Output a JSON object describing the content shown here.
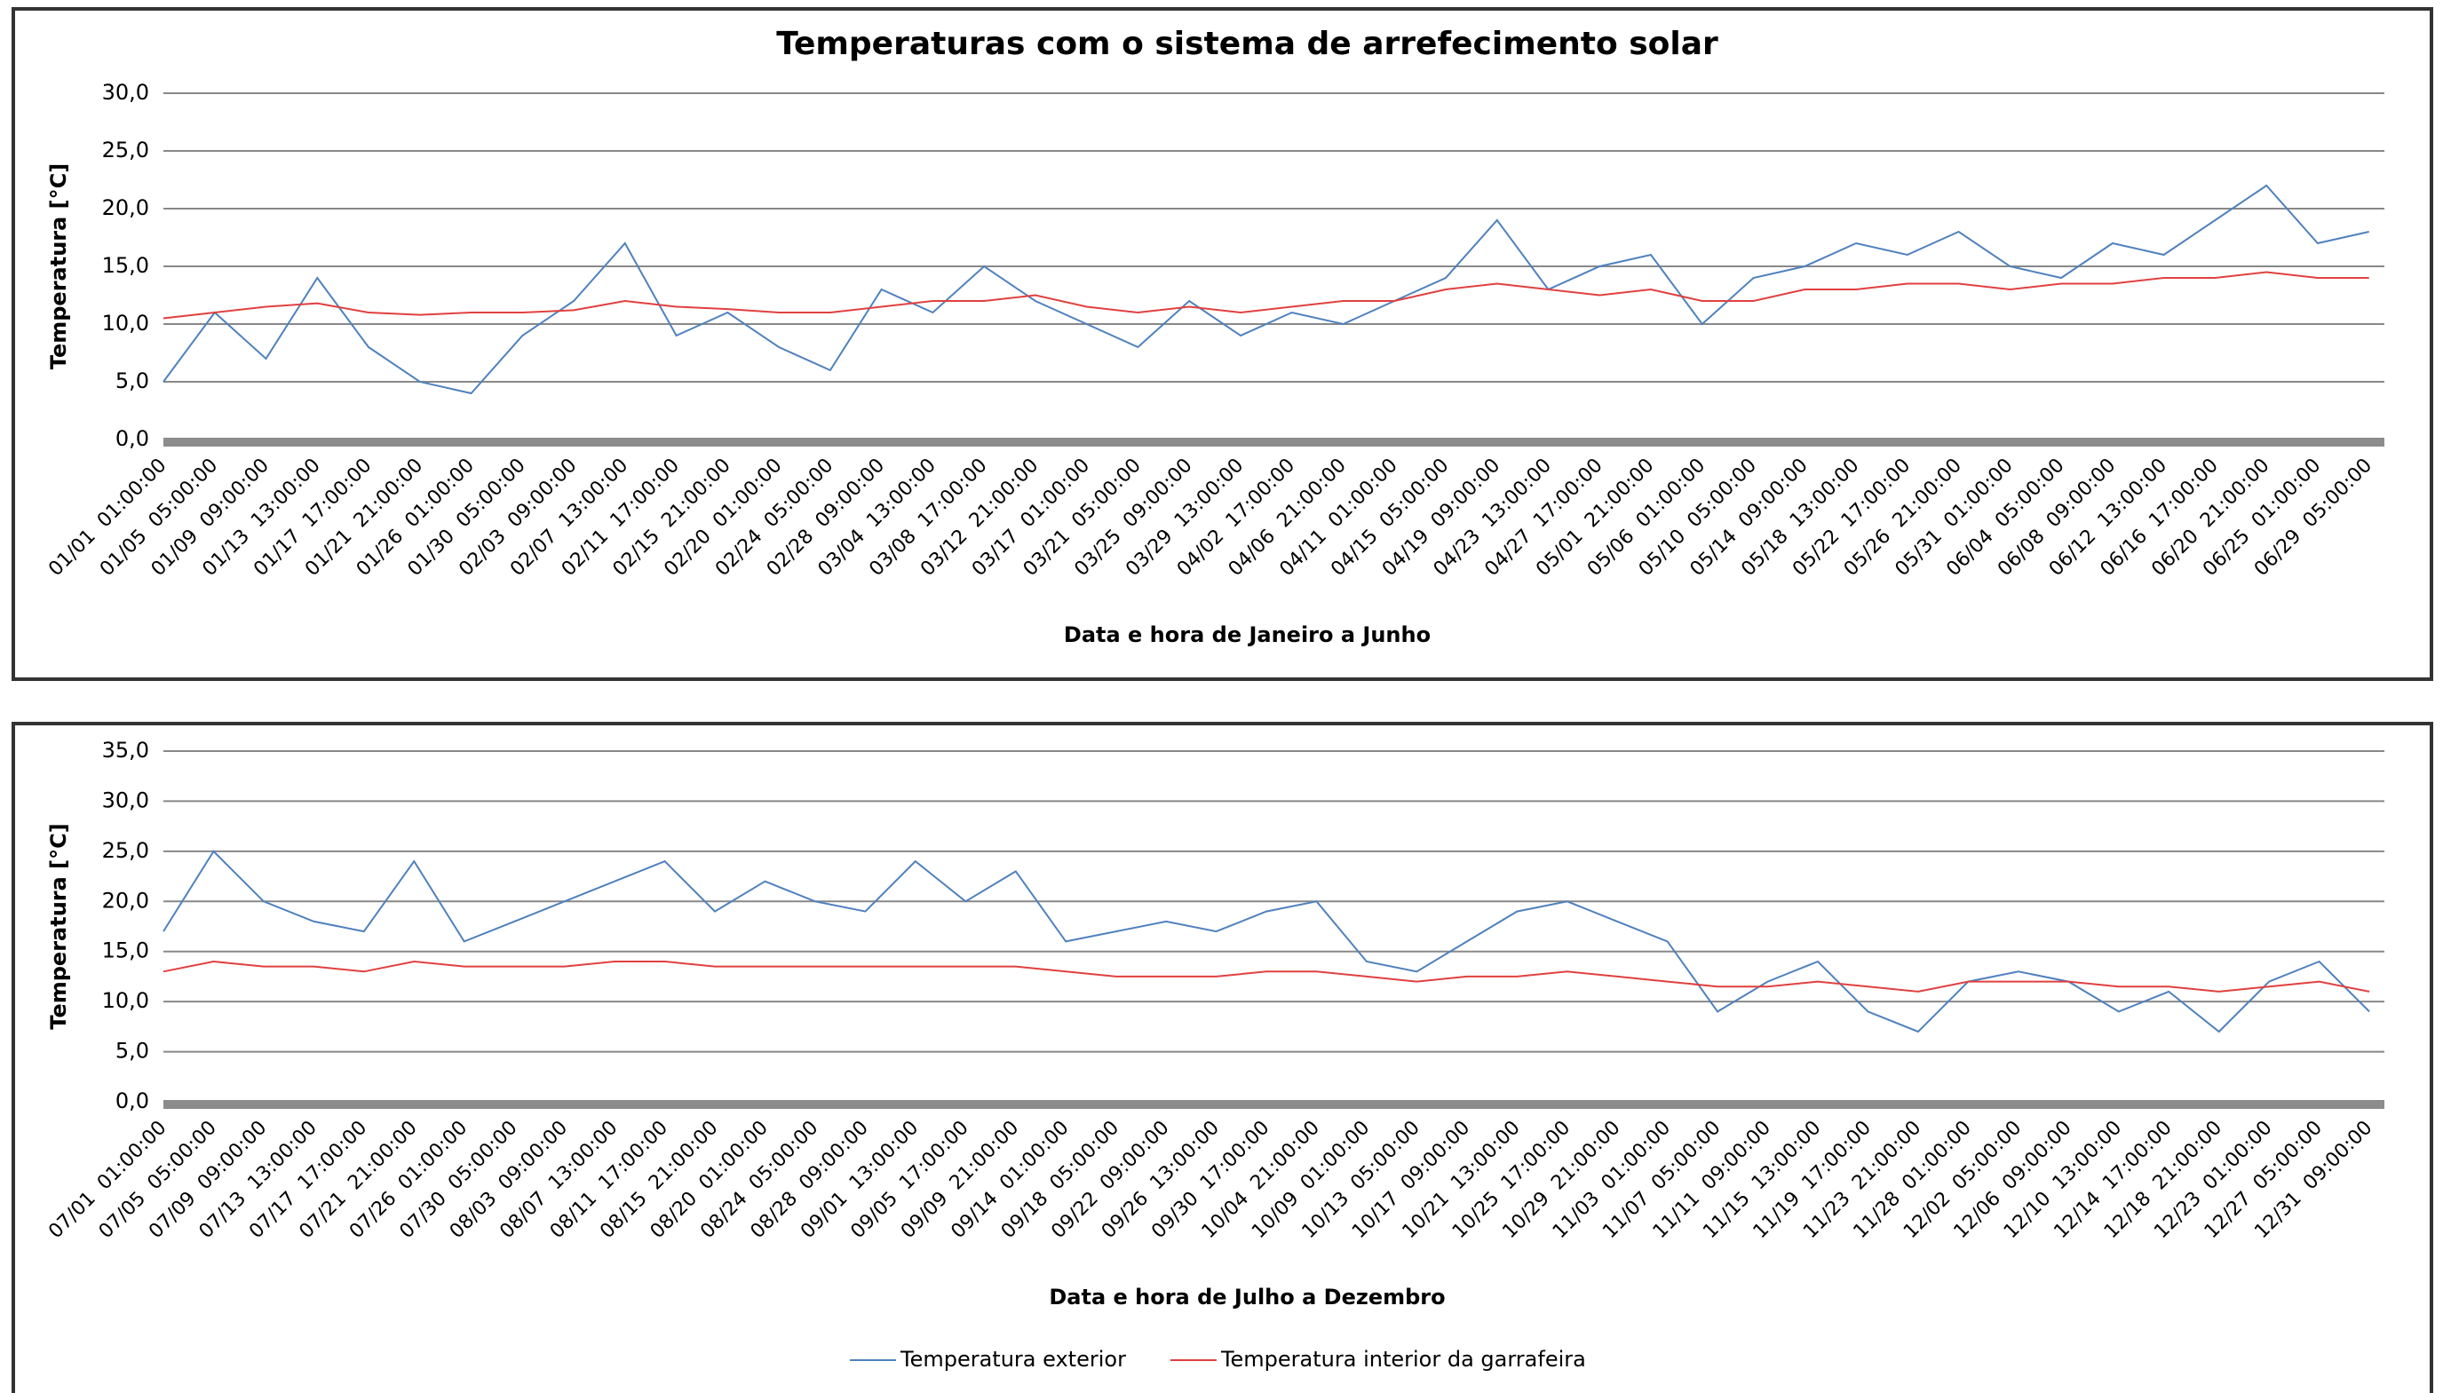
{
  "chart_data": [
    {
      "type": "line",
      "title": "Temperaturas com o sistema de arrefecimento solar",
      "x_label": "Data e hora de Janeiro a Junho",
      "y_label": "Temperatura [°C]",
      "categories": [
        "01/01  01:00:00",
        "01/05  05:00:00",
        "01/09  09:00:00",
        "01/13  13:00:00",
        "01/17  17:00:00",
        "01/21  21:00:00",
        "01/26  01:00:00",
        "01/30  05:00:00",
        "02/03  09:00:00",
        "02/07  13:00:00",
        "02/11  17:00:00",
        "02/15  21:00:00",
        "02/20  01:00:00",
        "02/24  05:00:00",
        "02/28  09:00:00",
        "03/04  13:00:00",
        "03/08  17:00:00",
        "03/12  21:00:00",
        "03/17  01:00:00",
        "03/21  05:00:00",
        "03/25  09:00:00",
        "03/29  13:00:00",
        "04/02  17:00:00",
        "04/06  21:00:00",
        "04/11  01:00:00",
        "04/15  05:00:00",
        "04/19  09:00:00",
        "04/23  13:00:00",
        "04/27  17:00:00",
        "05/01  21:00:00",
        "05/06  01:00:00",
        "05/10  05:00:00",
        "05/14  09:00:00",
        "05/18  13:00:00",
        "05/22  17:00:00",
        "05/26  21:00:00",
        "05/31  01:00:00",
        "06/04  05:00:00",
        "06/08  09:00:00",
        "06/12  13:00:00",
        "06/16  17:00:00",
        "06/20  21:00:00",
        "06/25  01:00:00",
        "06/29  05:00:00"
      ],
      "series": [
        {
          "color": "#4f81bd",
          "values": [
            5,
            11,
            7,
            14,
            8,
            5,
            4,
            9,
            12,
            17,
            9,
            11,
            8,
            6,
            13,
            11,
            15,
            12,
            10,
            8,
            12,
            9,
            11,
            10,
            12,
            14,
            19,
            13,
            15,
            16,
            10,
            14,
            15,
            17,
            16,
            18,
            15,
            14,
            17,
            16,
            19,
            22,
            17,
            18
          ]
        },
        {
          "color": "#e0403f",
          "values": [
            10.5,
            11,
            11.5,
            11.8,
            11,
            10.8,
            11,
            11,
            11.2,
            12,
            11.5,
            11.3,
            11,
            11,
            11.5,
            12,
            12,
            12.5,
            11.5,
            11,
            11.5,
            11,
            11.5,
            12,
            12,
            13,
            13.5,
            13,
            12.5,
            13,
            12,
            12,
            13,
            13,
            13.5,
            13.5,
            13,
            13.5,
            13.5,
            14,
            14,
            14.5,
            14,
            14
          ]
        }
      ],
      "ylim": [
        0,
        30
      ],
      "yticks": [
        {
          "value": 0,
          "label": "0,0"
        },
        {
          "value": 5,
          "label": "5,0"
        },
        {
          "value": 10,
          "label": "10,0"
        },
        {
          "value": 15,
          "label": "15,0"
        },
        {
          "value": 20,
          "label": "20,0"
        },
        {
          "value": 25,
          "label": "25,0"
        },
        {
          "value": 30,
          "label": "30,0"
        }
      ],
      "grid": true
    },
    {
      "type": "line",
      "x_label": "Data e hora de Julho a Dezembro",
      "y_label": "Temperatura [°C]",
      "categories": [
        "07/01  01:00:00",
        "07/05  05:00:00",
        "07/09  09:00:00",
        "07/13  13:00:00",
        "07/17  17:00:00",
        "07/21  21:00:00",
        "07/26  01:00:00",
        "07/30  05:00:00",
        "08/03  09:00:00",
        "08/07  13:00:00",
        "08/11  17:00:00",
        "08/15  21:00:00",
        "08/20  01:00:00",
        "08/24  05:00:00",
        "08/28  09:00:00",
        "09/01  13:00:00",
        "09/05  17:00:00",
        "09/09  21:00:00",
        "09/14  01:00:00",
        "09/18  05:00:00",
        "09/22  09:00:00",
        "09/26  13:00:00",
        "09/30  17:00:00",
        "10/04  21:00:00",
        "10/09  01:00:00",
        "10/13  05:00:00",
        "10/17  09:00:00",
        "10/21  13:00:00",
        "10/25  17:00:00",
        "10/29  21:00:00",
        "11/03  01:00:00",
        "11/07  05:00:00",
        "11/11  09:00:00",
        "11/15  13:00:00",
        "11/19  17:00:00",
        "11/23  21:00:00",
        "11/28  01:00:00",
        "12/02  05:00:00",
        "12/06  09:00:00",
        "12/10  13:00:00",
        "12/14  17:00:00",
        "12/18  21:00:00",
        "12/23  01:00:00",
        "12/27  05:00:00",
        "12/31  09:00:00"
      ],
      "series": [
        {
          "name": "Temperatura exterior",
          "color": "#4f81bd",
          "values": [
            17,
            25,
            20,
            18,
            17,
            24,
            16,
            18,
            20,
            22,
            24,
            19,
            22,
            20,
            19,
            24,
            20,
            23,
            16,
            17,
            18,
            17,
            19,
            20,
            14,
            13,
            16,
            19,
            20,
            18,
            16,
            9,
            12,
            14,
            9,
            7,
            12,
            13,
            12,
            9,
            11,
            7,
            12,
            14,
            9
          ]
        },
        {
          "name": "Temperatura interior da garrafeira",
          "color": "#e0403f",
          "values": [
            13,
            14,
            13.5,
            13.5,
            13,
            14,
            13.5,
            13.5,
            13.5,
            14,
            14,
            13.5,
            13.5,
            13.5,
            13.5,
            13.5,
            13.5,
            13.5,
            13,
            12.5,
            12.5,
            12.5,
            13,
            13,
            12.5,
            12,
            12.5,
            12.5,
            13,
            12.5,
            12,
            11.5,
            11.5,
            12,
            11.5,
            11,
            12,
            12,
            12,
            11.5,
            11.5,
            11,
            11.5,
            12,
            11
          ]
        }
      ],
      "ylim": [
        0,
        35
      ],
      "yticks": [
        {
          "value": 0,
          "label": "0,0"
        },
        {
          "value": 5,
          "label": "5,0"
        },
        {
          "value": 10,
          "label": "10,0"
        },
        {
          "value": 15,
          "label": "15,0"
        },
        {
          "value": 20,
          "label": "20,0"
        },
        {
          "value": 25,
          "label": "25,0"
        },
        {
          "value": 30,
          "label": "30,0"
        },
        {
          "value": 35,
          "label": "35,0"
        }
      ],
      "grid": true
    }
  ]
}
